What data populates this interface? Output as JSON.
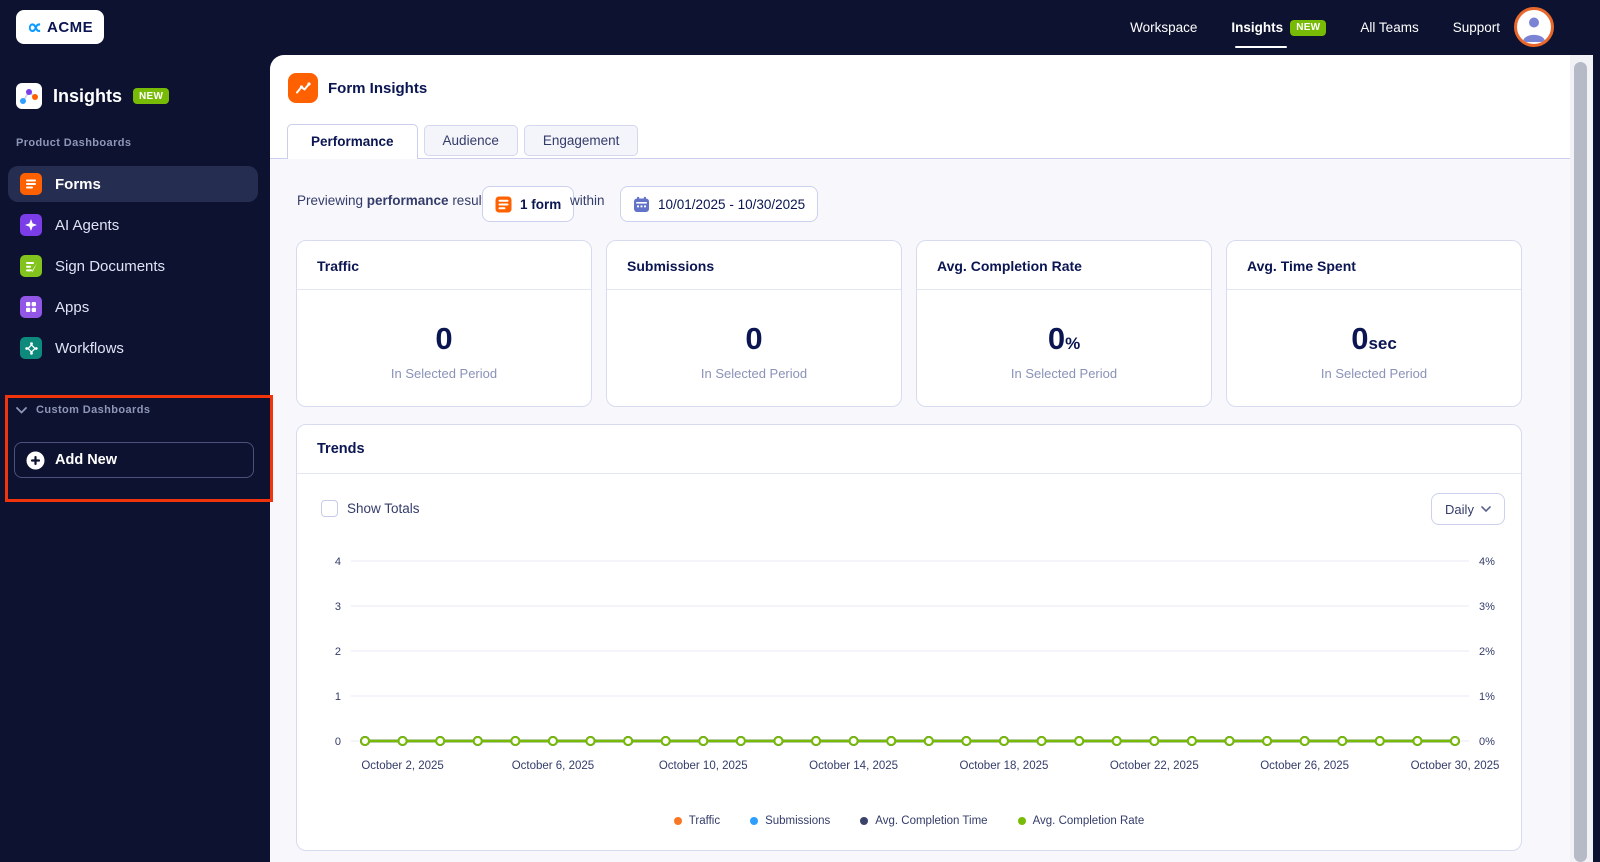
{
  "topbar": {
    "brand": "ACME",
    "brand_icon_glyph": "∝",
    "nav": [
      {
        "label": "Workspace"
      },
      {
        "label": "Insights",
        "badge": "NEW"
      },
      {
        "label": "All Teams"
      },
      {
        "label": "Support"
      }
    ]
  },
  "sidebar": {
    "app_title": "Insights",
    "app_badge": "NEW",
    "sections": {
      "products": "Product Dashboards",
      "custom": "Custom Dashboards"
    },
    "items": [
      {
        "label": "Forms",
        "icon": "forms-icon",
        "color": "#FF6100"
      },
      {
        "label": "AI Agents",
        "icon": "ai-agents-icon",
        "color": "#7A3DE8"
      },
      {
        "label": "Sign Documents",
        "icon": "sign-documents-icon",
        "color": "#82C41D"
      },
      {
        "label": "Apps",
        "icon": "apps-icon",
        "color": "#9357E8"
      },
      {
        "label": "Workflows",
        "icon": "workflows-icon",
        "color": "#0E8A7D"
      }
    ],
    "add_new_label": "Add New"
  },
  "main": {
    "title": "Form Insights",
    "tabs": [
      {
        "label": "Performance"
      },
      {
        "label": "Audience"
      },
      {
        "label": "Engagement"
      }
    ],
    "filter": {
      "prefix": "Previewing ",
      "bold": "performance",
      "suffix": " results of",
      "form_button_label": "1 form",
      "connector": "within",
      "date_range": "10/01/2025 - 10/30/2025"
    },
    "stats": [
      {
        "title": "Traffic",
        "value": "0",
        "unit": "",
        "period": "In Selected Period"
      },
      {
        "title": "Submissions",
        "value": "0",
        "unit": "",
        "period": "In Selected Period"
      },
      {
        "title": "Avg. Completion Rate",
        "value": "0",
        "unit": "%",
        "period": "In Selected Period"
      },
      {
        "title": "Avg. Time Spent",
        "value": "0",
        "unit": "sec",
        "period": "In Selected Period"
      }
    ],
    "trends": {
      "title": "Trends",
      "show_totals_label": "Show Totals",
      "show_totals_checked": false,
      "interval": "Daily"
    }
  },
  "colors": {
    "accent_orange": "#FF6100",
    "badge_green": "#78BB07",
    "navy": "#0A1551",
    "annotation_red": "#F2340C",
    "avatar_ring": "#E8682C"
  },
  "chart_data": {
    "type": "line",
    "title": "Trends",
    "interval": "Daily",
    "x_points": 30,
    "x_range": [
      "October 1, 2025",
      "October 30, 2025"
    ],
    "x_labels": [
      "October 2, 2025",
      "October 6, 2025",
      "October 10, 2025",
      "October 14, 2025",
      "October 18, 2025",
      "October 22, 2025",
      "October 26, 2025",
      "October 30, 2025"
    ],
    "x_label_indices": [
      1,
      5,
      9,
      13,
      17,
      21,
      25,
      29
    ],
    "left_axis_ticks": [
      "0",
      "1",
      "2",
      "3",
      "4"
    ],
    "right_axis_ticks": [
      "0%",
      "1%",
      "2%",
      "3%",
      "4%"
    ],
    "ylim": [
      0,
      4
    ],
    "grid": true,
    "legend_position": "bottom",
    "series": [
      {
        "name": "Traffic",
        "color": "#F97724",
        "values": [
          0,
          0,
          0,
          0,
          0,
          0,
          0,
          0,
          0,
          0,
          0,
          0,
          0,
          0,
          0,
          0,
          0,
          0,
          0,
          0,
          0,
          0,
          0,
          0,
          0,
          0,
          0,
          0,
          0,
          0
        ]
      },
      {
        "name": "Submissions",
        "color": "#2E9FFF",
        "values": [
          0,
          0,
          0,
          0,
          0,
          0,
          0,
          0,
          0,
          0,
          0,
          0,
          0,
          0,
          0,
          0,
          0,
          0,
          0,
          0,
          0,
          0,
          0,
          0,
          0,
          0,
          0,
          0,
          0,
          0
        ]
      },
      {
        "name": "Avg. Completion Time",
        "color": "#3B4368",
        "values": [
          0,
          0,
          0,
          0,
          0,
          0,
          0,
          0,
          0,
          0,
          0,
          0,
          0,
          0,
          0,
          0,
          0,
          0,
          0,
          0,
          0,
          0,
          0,
          0,
          0,
          0,
          0,
          0,
          0,
          0
        ]
      },
      {
        "name": "Avg. Completion Rate",
        "color": "#78BB07",
        "values": [
          0,
          0,
          0,
          0,
          0,
          0,
          0,
          0,
          0,
          0,
          0,
          0,
          0,
          0,
          0,
          0,
          0,
          0,
          0,
          0,
          0,
          0,
          0,
          0,
          0,
          0,
          0,
          0,
          0,
          0
        ]
      }
    ]
  }
}
